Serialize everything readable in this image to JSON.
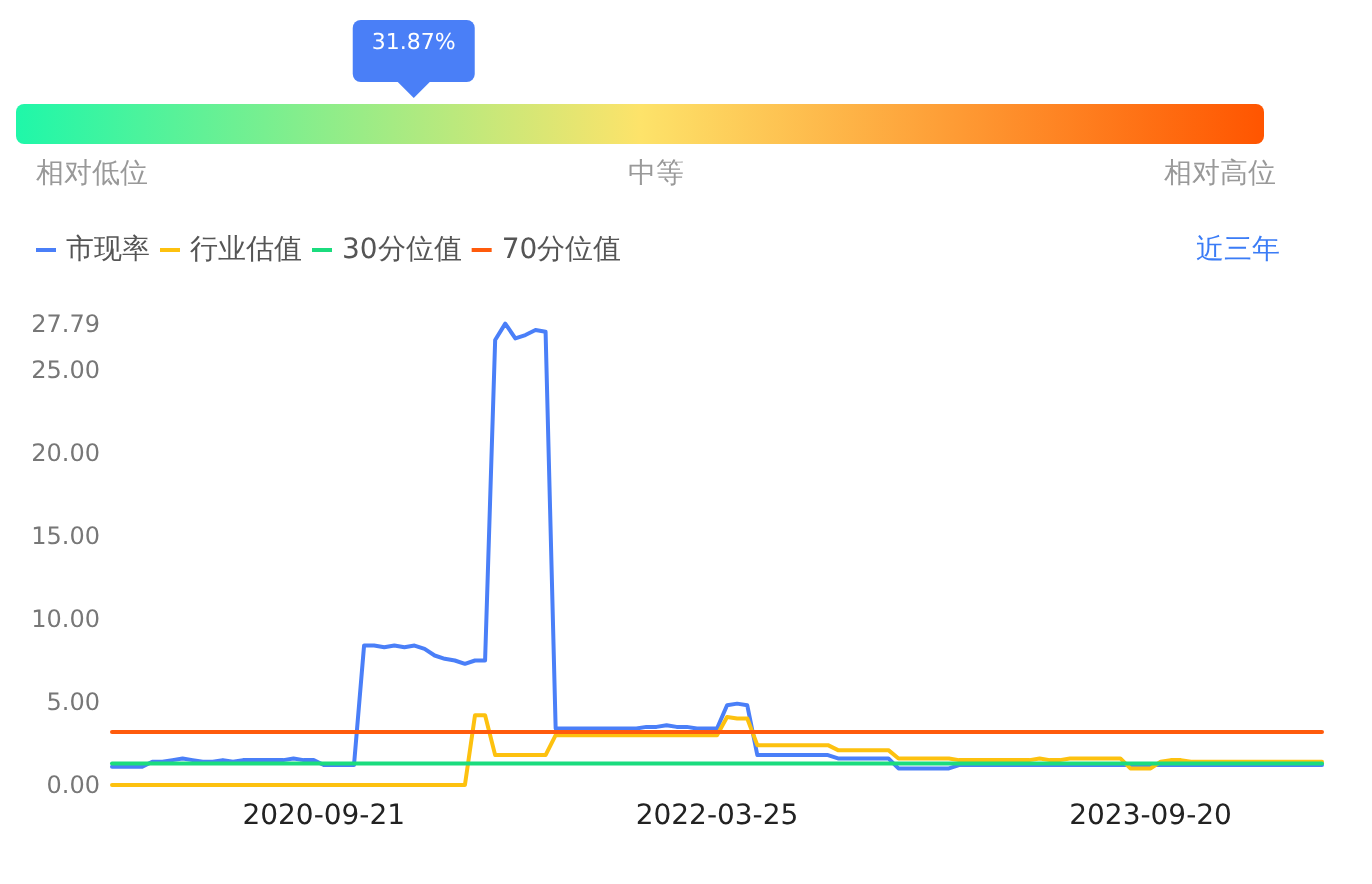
{
  "chart_data": [
    {
      "type": "other",
      "values": [
        31.87
      ],
      "value_labels": [
        "31.87%"
      ],
      "color": "#4a7ff7",
      "annotations": [
        "相对低位",
        "中等",
        "相对高位"
      ]
    },
    {
      "type": "line",
      "categories": [
        null,
        null,
        null,
        null,
        null,
        null,
        null,
        null,
        null,
        null,
        null,
        null,
        null,
        null,
        null,
        null,
        null,
        null,
        null,
        null,
        null,
        "2020-09-21",
        null,
        null,
        null,
        null,
        null,
        null,
        null,
        null,
        null,
        null,
        null,
        null,
        null,
        null,
        null,
        null,
        null,
        null,
        null,
        null,
        null,
        null,
        null,
        null,
        null,
        null,
        null,
        null,
        null,
        null,
        null,
        null,
        null,
        null,
        null,
        null,
        null,
        null,
        "2022-03-25",
        null,
        null,
        null,
        null,
        null,
        null,
        null,
        null,
        null,
        null,
        null,
        null,
        null,
        null,
        null,
        null,
        null,
        null,
        null,
        null,
        null,
        null,
        null,
        null,
        null,
        null,
        null,
        null,
        null,
        null,
        null,
        null,
        null,
        null,
        null,
        null,
        null,
        null,
        null,
        null,
        null,
        null,
        "2023-09-20",
        null,
        null,
        null,
        null,
        null,
        null,
        null,
        null,
        null,
        null,
        null,
        null,
        null,
        null,
        null,
        null,
        null
      ],
      "series": [
        {
          "name": "市现率",
          "color": "#4a7ff8",
          "values": [
            1.1,
            1.1,
            1.1,
            1.1,
            1.4,
            1.4,
            1.5,
            1.6,
            1.5,
            1.4,
            1.4,
            1.5,
            1.4,
            1.5,
            1.5,
            1.5,
            1.5,
            1.5,
            1.6,
            1.5,
            1.5,
            1.2,
            1.2,
            1.2,
            1.2,
            8.4,
            8.4,
            8.3,
            8.4,
            8.3,
            8.4,
            8.2,
            7.8,
            7.6,
            7.5,
            7.3,
            7.5,
            7.5,
            26.8,
            27.79,
            26.9,
            27.1,
            27.4,
            27.3,
            3.4,
            3.4,
            3.4,
            3.4,
            3.4,
            3.4,
            3.4,
            3.4,
            3.4,
            3.5,
            3.5,
            3.6,
            3.5,
            3.5,
            3.4,
            3.4,
            3.4,
            4.8,
            4.9,
            4.8,
            1.8,
            1.8,
            1.8,
            1.8,
            1.8,
            1.8,
            1.8,
            1.8,
            1.6,
            1.6,
            1.6,
            1.6,
            1.6,
            1.6,
            1.0,
            1.0,
            1.0,
            1.0,
            1.0,
            1.0,
            1.2,
            1.2,
            1.2,
            1.2,
            1.2,
            1.2,
            1.2,
            1.2,
            1.2,
            1.2,
            1.2,
            1.2,
            1.2,
            1.2,
            1.2,
            1.2,
            1.2,
            1.2,
            1.2,
            1.2,
            1.2,
            1.2,
            1.2,
            1.2,
            1.2,
            1.2,
            1.2,
            1.2,
            1.2,
            1.2,
            1.2,
            1.2,
            1.2,
            1.2,
            1.2,
            1.2,
            1.2
          ]
        },
        {
          "name": "行业估值",
          "color": "#fdc10f",
          "values": [
            0,
            0,
            0,
            0,
            0,
            0,
            0,
            0,
            0,
            0,
            0,
            0,
            0,
            0,
            0,
            0,
            0,
            0,
            0,
            0,
            0,
            0,
            0,
            0,
            0,
            0,
            0,
            0,
            0,
            0,
            0,
            0,
            0,
            0,
            0,
            0,
            4.2,
            4.2,
            1.8,
            1.8,
            1.8,
            1.8,
            1.8,
            1.8,
            3.0,
            3.0,
            3.0,
            3.0,
            3.0,
            3.0,
            3.0,
            3.0,
            3.0,
            3.0,
            3.0,
            3.0,
            3.0,
            3.0,
            3.0,
            3.0,
            3.0,
            4.1,
            4.0,
            4.0,
            2.4,
            2.4,
            2.4,
            2.4,
            2.4,
            2.4,
            2.4,
            2.4,
            2.1,
            2.1,
            2.1,
            2.1,
            2.1,
            2.1,
            1.6,
            1.6,
            1.6,
            1.6,
            1.6,
            1.6,
            1.5,
            1.5,
            1.5,
            1.5,
            1.5,
            1.5,
            1.5,
            1.5,
            1.6,
            1.5,
            1.5,
            1.6,
            1.6,
            1.6,
            1.6,
            1.6,
            1.6,
            1.0,
            1.0,
            1.0,
            1.4,
            1.5,
            1.5,
            1.4,
            1.4,
            1.4,
            1.4,
            1.4,
            1.4,
            1.4,
            1.4,
            1.4,
            1.4,
            1.4,
            1.4,
            1.4,
            1.4
          ]
        },
        {
          "name": "30分位值",
          "color": "#1bdc7e",
          "values": [
            1.3,
            1.3,
            1.3,
            1.3,
            1.3,
            1.3,
            1.3,
            1.3,
            1.3,
            1.3,
            1.3,
            1.3,
            1.3,
            1.3,
            1.3,
            1.3,
            1.3,
            1.3,
            1.3,
            1.3,
            1.3,
            1.3,
            1.3,
            1.3,
            1.3,
            1.3,
            1.3,
            1.3,
            1.3,
            1.3,
            1.3,
            1.3,
            1.3,
            1.3,
            1.3,
            1.3,
            1.3,
            1.3,
            1.3,
            1.3,
            1.3,
            1.3,
            1.3,
            1.3,
            1.3,
            1.3,
            1.3,
            1.3,
            1.3,
            1.3,
            1.3,
            1.3,
            1.3,
            1.3,
            1.3,
            1.3,
            1.3,
            1.3,
            1.3,
            1.3,
            1.3,
            1.3,
            1.3,
            1.3,
            1.3,
            1.3,
            1.3,
            1.3,
            1.3,
            1.3,
            1.3,
            1.3,
            1.3,
            1.3,
            1.3,
            1.3,
            1.3,
            1.3,
            1.3,
            1.3,
            1.3,
            1.3,
            1.3,
            1.3,
            1.3,
            1.3,
            1.3,
            1.3,
            1.3,
            1.3,
            1.3,
            1.3,
            1.3,
            1.3,
            1.3,
            1.3,
            1.3,
            1.3,
            1.3,
            1.3,
            1.3,
            1.3,
            1.3,
            1.3,
            1.3,
            1.3,
            1.3,
            1.3,
            1.3,
            1.3,
            1.3,
            1.3,
            1.3,
            1.3,
            1.3,
            1.3,
            1.3,
            1.3,
            1.3,
            1.3,
            1.3
          ]
        },
        {
          "name": "70分位值",
          "color": "#ff5b0c",
          "values": [
            3.2,
            3.2,
            3.2,
            3.2,
            3.2,
            3.2,
            3.2,
            3.2,
            3.2,
            3.2,
            3.2,
            3.2,
            3.2,
            3.2,
            3.2,
            3.2,
            3.2,
            3.2,
            3.2,
            3.2,
            3.2,
            3.2,
            3.2,
            3.2,
            3.2,
            3.2,
            3.2,
            3.2,
            3.2,
            3.2,
            3.2,
            3.2,
            3.2,
            3.2,
            3.2,
            3.2,
            3.2,
            3.2,
            3.2,
            3.2,
            3.2,
            3.2,
            3.2,
            3.2,
            3.2,
            3.2,
            3.2,
            3.2,
            3.2,
            3.2,
            3.2,
            3.2,
            3.2,
            3.2,
            3.2,
            3.2,
            3.2,
            3.2,
            3.2,
            3.2,
            3.2,
            3.2,
            3.2,
            3.2,
            3.2,
            3.2,
            3.2,
            3.2,
            3.2,
            3.2,
            3.2,
            3.2,
            3.2,
            3.2,
            3.2,
            3.2,
            3.2,
            3.2,
            3.2,
            3.2,
            3.2,
            3.2,
            3.2,
            3.2,
            3.2,
            3.2,
            3.2,
            3.2,
            3.2,
            3.2,
            3.2,
            3.2,
            3.2,
            3.2,
            3.2,
            3.2,
            3.2,
            3.2,
            3.2,
            3.2,
            3.2,
            3.2,
            3.2,
            3.2,
            3.2,
            3.2,
            3.2,
            3.2,
            3.2,
            3.2,
            3.2,
            3.2,
            3.2,
            3.2,
            3.2,
            3.2,
            3.2,
            3.2,
            3.2,
            3.2,
            3.2
          ]
        }
      ],
      "ylim": [
        0,
        27.79
      ],
      "yticks": [
        {
          "value": 0,
          "label": "0.00"
        },
        {
          "value": 5,
          "label": "5.00"
        },
        {
          "value": 10,
          "label": "10.00"
        },
        {
          "value": 15,
          "label": "15.00"
        },
        {
          "value": 20,
          "label": "20.00"
        },
        {
          "value": 25,
          "label": "25.00"
        },
        {
          "value": 27.79,
          "label": "27.79"
        }
      ],
      "legend": "top left",
      "annotations": [
        "近三年"
      ]
    }
  ]
}
